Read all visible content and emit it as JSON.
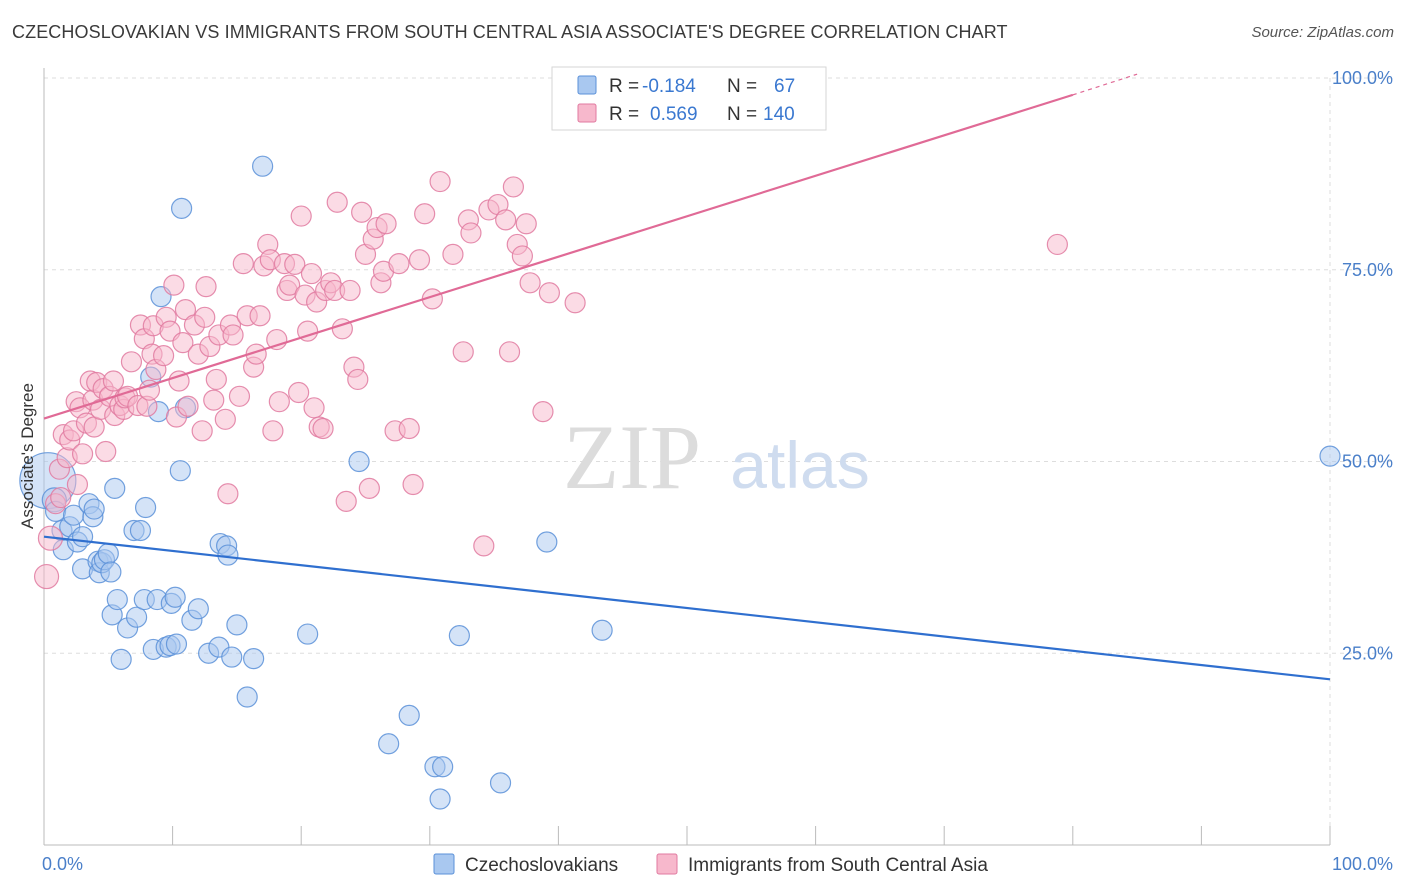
{
  "title": "CZECHOSLOVAKIAN VS IMMIGRANTS FROM SOUTH CENTRAL ASIA ASSOCIATE'S DEGREE CORRELATION CHART",
  "source": "Source: ZipAtlas.com",
  "watermark": {
    "zip": "ZIP",
    "atlas": "atlas"
  },
  "colors": {
    "blue_fill": "#a9c8f0",
    "blue_stroke": "#5a90d8",
    "blue_line": "#2f6fcf",
    "pink_fill": "#f7b8cc",
    "pink_stroke": "#e07aa0",
    "pink_line": "#e06a96",
    "stat_value": "#3a78d0",
    "grid": "#dddddd",
    "axis_text": "#4a7fc9"
  },
  "stats": [
    {
      "r_label": "R =",
      "r_value": "-0.184",
      "n_label": "N =",
      "n_value": "67",
      "series": "blue"
    },
    {
      "r_label": "R =",
      "r_value": "0.569",
      "n_label": "N =",
      "n_value": "140",
      "series": "pink"
    }
  ],
  "chart_data": {
    "type": "scatter",
    "title": "CZECHOSLOVAKIAN VS IMMIGRANTS FROM SOUTH CENTRAL ASIA ASSOCIATE'S DEGREE CORRELATION CHART",
    "xlabel": "",
    "ylabel": "Associate's Degree",
    "xlim": [
      0,
      100
    ],
    "ylim": [
      0,
      100
    ],
    "x_tick_labels": [
      "0.0%",
      "100.0%"
    ],
    "y_ticks": [
      25,
      50,
      75,
      100
    ],
    "y_tick_labels": [
      "25.0%",
      "50.0%",
      "75.0%",
      "100.0%"
    ],
    "grid": true,
    "legend_position": "bottom",
    "series": [
      {
        "name": "Czechoslovakians",
        "color": "#a9c8f0",
        "trend": {
          "x": [
            0,
            100
          ],
          "y": [
            40.2,
            21.6
          ]
        },
        "points": [
          [
            0.3,
            47.5,
            28
          ],
          [
            0.8,
            45,
            12
          ],
          [
            0.9,
            43.5,
            10
          ],
          [
            1.4,
            41,
            10
          ],
          [
            1.5,
            38.5,
            10
          ],
          [
            2,
            41.5,
            10
          ],
          [
            2.3,
            43,
            10
          ],
          [
            2.6,
            39.5,
            10
          ],
          [
            3,
            40.2,
            10
          ],
          [
            3,
            36,
            10
          ],
          [
            3.5,
            44.5,
            10
          ],
          [
            3.8,
            42.8,
            10
          ],
          [
            3.9,
            43.8,
            10
          ],
          [
            4.2,
            37,
            10
          ],
          [
            4.3,
            35.5,
            10
          ],
          [
            4.5,
            36.8,
            10
          ],
          [
            4.7,
            37.2,
            10
          ],
          [
            5,
            38,
            10
          ],
          [
            5.2,
            35.6,
            10
          ],
          [
            5.3,
            30,
            10
          ],
          [
            5.5,
            46.5,
            10
          ],
          [
            5.7,
            32,
            10
          ],
          [
            6,
            24.2,
            10
          ],
          [
            6.5,
            28.3,
            10
          ],
          [
            7,
            41,
            10
          ],
          [
            7.2,
            29.7,
            10
          ],
          [
            7.5,
            41,
            10
          ],
          [
            7.8,
            32,
            10
          ],
          [
            7.9,
            44,
            10
          ],
          [
            8.3,
            61,
            10
          ],
          [
            8.5,
            25.5,
            10
          ],
          [
            8.8,
            32,
            10
          ],
          [
            8.9,
            56.5,
            10
          ],
          [
            9.1,
            71.5,
            10
          ],
          [
            9.5,
            25.8,
            10
          ],
          [
            9.8,
            26,
            10
          ],
          [
            9.9,
            31.5,
            10
          ],
          [
            10.2,
            32.3,
            10
          ],
          [
            10.3,
            26.2,
            10
          ],
          [
            10.6,
            48.8,
            10
          ],
          [
            10.7,
            83,
            10
          ],
          [
            11,
            57,
            10
          ],
          [
            11.5,
            29.3,
            10
          ],
          [
            12,
            30.8,
            10
          ],
          [
            12.8,
            25,
            10
          ],
          [
            13.6,
            25.8,
            10
          ],
          [
            13.7,
            39.3,
            10
          ],
          [
            14.2,
            39,
            10
          ],
          [
            14.3,
            37.8,
            10
          ],
          [
            14.6,
            24.5,
            10
          ],
          [
            15,
            28.7,
            10
          ],
          [
            15.8,
            19.3,
            10
          ],
          [
            16.3,
            24.3,
            10
          ],
          [
            17,
            88.5,
            10
          ],
          [
            20.5,
            27.5,
            10
          ],
          [
            24.5,
            50,
            10
          ],
          [
            26.8,
            13.2,
            10
          ],
          [
            28.4,
            16.9,
            10
          ],
          [
            30.4,
            10.2,
            10
          ],
          [
            30.8,
            6,
            10
          ],
          [
            31,
            10.2,
            10
          ],
          [
            32.3,
            27.3,
            10
          ],
          [
            35.5,
            8.1,
            10
          ],
          [
            39.1,
            39.5,
            10
          ],
          [
            43.4,
            28,
            10
          ],
          [
            100,
            50.7,
            10
          ]
        ]
      },
      {
        "name": "Immigrants from South Central Asia",
        "color": "#f7b8cc",
        "trend": {
          "x": [
            0,
            80,
            85
          ],
          "y": [
            55.6,
            97.8,
            100.5
          ]
        },
        "points": [
          [
            0.2,
            35,
            12
          ],
          [
            0.5,
            40,
            12
          ],
          [
            0.9,
            44.5,
            10
          ],
          [
            1.2,
            49,
            10
          ],
          [
            1.3,
            45.3,
            10
          ],
          [
            1.5,
            53.5,
            10
          ],
          [
            1.8,
            50.5,
            10
          ],
          [
            2,
            52.8,
            10
          ],
          [
            2.3,
            54,
            10
          ],
          [
            2.5,
            57.8,
            10
          ],
          [
            2.6,
            47,
            10
          ],
          [
            2.8,
            57,
            10
          ],
          [
            3,
            51,
            10
          ],
          [
            3.3,
            55,
            10
          ],
          [
            3.6,
            60.5,
            10
          ],
          [
            3.8,
            58,
            10
          ],
          [
            3.9,
            54.5,
            10
          ],
          [
            4.1,
            60.3,
            10
          ],
          [
            4.4,
            56.8,
            10
          ],
          [
            4.6,
            59.5,
            10
          ],
          [
            4.8,
            51.3,
            10
          ],
          [
            5.1,
            58.5,
            10
          ],
          [
            5.4,
            60.5,
            10
          ],
          [
            5.5,
            56,
            10
          ],
          [
            5.9,
            57.3,
            10
          ],
          [
            6.2,
            56.8,
            10
          ],
          [
            6.3,
            58.3,
            10
          ],
          [
            6.5,
            58.5,
            10
          ],
          [
            6.8,
            63,
            10
          ],
          [
            7.3,
            57.3,
            10
          ],
          [
            7.5,
            67.8,
            10
          ],
          [
            7.8,
            66,
            10
          ],
          [
            8,
            57.2,
            10
          ],
          [
            8.2,
            59.3,
            10
          ],
          [
            8.4,
            64,
            10
          ],
          [
            8.5,
            67.7,
            10
          ],
          [
            8.7,
            62,
            10
          ],
          [
            9.3,
            63.8,
            10
          ],
          [
            9.5,
            68.8,
            10
          ],
          [
            9.8,
            67,
            10
          ],
          [
            10.1,
            73,
            10
          ],
          [
            10.3,
            55.8,
            10
          ],
          [
            10.5,
            60.5,
            10
          ],
          [
            10.8,
            65.5,
            10
          ],
          [
            11,
            69.8,
            10
          ],
          [
            11.2,
            57.2,
            10
          ],
          [
            11.7,
            67.8,
            10
          ],
          [
            12,
            64,
            10
          ],
          [
            12.3,
            54,
            10
          ],
          [
            12.5,
            68.8,
            10
          ],
          [
            12.6,
            72.8,
            10
          ],
          [
            12.9,
            65,
            10
          ],
          [
            13.2,
            58,
            10
          ],
          [
            13.4,
            60.7,
            10
          ],
          [
            13.6,
            66.5,
            10
          ],
          [
            14.1,
            55.5,
            10
          ],
          [
            14.3,
            45.8,
            10
          ],
          [
            14.5,
            67.8,
            10
          ],
          [
            14.7,
            66.5,
            10
          ],
          [
            15.2,
            58.5,
            10
          ],
          [
            15.5,
            75.8,
            10
          ],
          [
            15.8,
            69,
            10
          ],
          [
            16.3,
            62.3,
            10
          ],
          [
            16.5,
            64,
            10
          ],
          [
            16.8,
            69,
            10
          ],
          [
            17.1,
            75.5,
            10
          ],
          [
            17.4,
            78.3,
            10
          ],
          [
            17.6,
            76.3,
            10
          ],
          [
            17.8,
            54,
            10
          ],
          [
            18.1,
            65.9,
            10
          ],
          [
            18.3,
            57.8,
            10
          ],
          [
            18.7,
            75.8,
            10
          ],
          [
            18.9,
            72.3,
            10
          ],
          [
            19.1,
            73,
            10
          ],
          [
            19.5,
            75.7,
            10
          ],
          [
            19.8,
            59,
            10
          ],
          [
            20,
            82,
            10
          ],
          [
            20.3,
            71.7,
            10
          ],
          [
            20.5,
            67,
            10
          ],
          [
            20.8,
            74.5,
            10
          ],
          [
            21,
            57,
            10
          ],
          [
            21.2,
            70.8,
            10
          ],
          [
            21.4,
            54.5,
            10
          ],
          [
            21.7,
            54.3,
            10
          ],
          [
            21.9,
            72.3,
            10
          ],
          [
            22.3,
            73.3,
            10
          ],
          [
            22.6,
            72.3,
            10
          ],
          [
            22.8,
            83.8,
            10
          ],
          [
            23.2,
            67.3,
            10
          ],
          [
            23.5,
            44.8,
            10
          ],
          [
            23.8,
            72.3,
            10
          ],
          [
            24.1,
            62.3,
            10
          ],
          [
            24.4,
            60.7,
            10
          ],
          [
            24.7,
            82.5,
            10
          ],
          [
            25,
            77,
            10
          ],
          [
            25.3,
            46.5,
            10
          ],
          [
            25.6,
            79,
            10
          ],
          [
            25.9,
            80.5,
            10
          ],
          [
            26.2,
            73.3,
            10
          ],
          [
            26.4,
            74.8,
            10
          ],
          [
            26.6,
            81,
            10
          ],
          [
            27.3,
            54,
            10
          ],
          [
            27.6,
            75.8,
            10
          ],
          [
            28.4,
            54.3,
            10
          ],
          [
            28.7,
            47,
            10
          ],
          [
            29.2,
            76.3,
            10
          ],
          [
            29.6,
            82.3,
            10
          ],
          [
            30.2,
            71.2,
            10
          ],
          [
            30.8,
            86.5,
            10
          ],
          [
            31.8,
            77,
            10
          ],
          [
            32.6,
            64.3,
            10
          ],
          [
            33,
            81.5,
            10
          ],
          [
            33.2,
            79.8,
            10
          ],
          [
            34.2,
            39,
            10
          ],
          [
            34.6,
            82.8,
            10
          ],
          [
            35.3,
            83.5,
            10
          ],
          [
            35.9,
            81.5,
            10
          ],
          [
            36.2,
            64.3,
            10
          ],
          [
            36.5,
            85.8,
            10
          ],
          [
            36.8,
            78.3,
            10
          ],
          [
            37.2,
            76.8,
            10
          ],
          [
            37.5,
            81,
            10
          ],
          [
            37.8,
            73.3,
            10
          ],
          [
            38.8,
            56.5,
            10
          ],
          [
            39.3,
            72,
            10
          ],
          [
            41.3,
            70.7,
            10
          ],
          [
            78.8,
            78.3,
            10
          ]
        ]
      }
    ]
  }
}
